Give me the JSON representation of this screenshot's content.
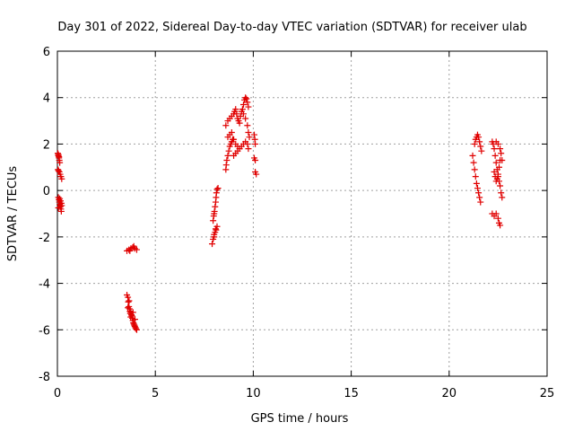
{
  "chart_data": {
    "type": "scatter",
    "title": "Day 301 of 2022, Sidereal Day-to-day VTEC variation (SDTVAR) for receiver ulab",
    "xlabel": "GPS time / hours",
    "ylabel": "SDTVAR / TECUs",
    "xlim": [
      0,
      25
    ],
    "ylim": [
      -8,
      6
    ],
    "xticks": [
      "0",
      "5",
      "10",
      "15",
      "20",
      "25"
    ],
    "yticks": [
      "-8",
      "-6",
      "-4",
      "-2",
      "0",
      "2",
      "4",
      "6"
    ],
    "grid": true,
    "marker": "+",
    "color": "#e00000",
    "series": [
      {
        "name": "SDTVAR",
        "points": [
          [
            0.02,
            1.6
          ],
          [
            0.05,
            1.5
          ],
          [
            0.08,
            1.4
          ],
          [
            0.1,
            1.3
          ],
          [
            0.12,
            1.2
          ],
          [
            0.05,
            1.55
          ],
          [
            0.08,
            1.45
          ],
          [
            0.03,
            0.9
          ],
          [
            0.06,
            0.85
          ],
          [
            0.1,
            0.8
          ],
          [
            0.14,
            0.7
          ],
          [
            0.18,
            0.6
          ],
          [
            0.22,
            0.5
          ],
          [
            0.05,
            -0.3
          ],
          [
            0.08,
            -0.4
          ],
          [
            0.1,
            -0.5
          ],
          [
            0.12,
            -0.6
          ],
          [
            0.15,
            -0.7
          ],
          [
            0.18,
            -0.8
          ],
          [
            0.2,
            -0.9
          ],
          [
            0.12,
            -0.35
          ],
          [
            0.16,
            -0.45
          ],
          [
            0.2,
            -0.55
          ],
          [
            0.22,
            -0.65
          ],
          [
            0.05,
            -0.75
          ],
          [
            3.55,
            -2.6
          ],
          [
            3.65,
            -2.55
          ],
          [
            3.75,
            -2.5
          ],
          [
            3.85,
            -2.45
          ],
          [
            3.95,
            -2.5
          ],
          [
            4.05,
            -2.55
          ],
          [
            3.7,
            -2.6
          ],
          [
            3.9,
            -2.4
          ],
          [
            3.55,
            -4.5
          ],
          [
            3.6,
            -4.6
          ],
          [
            3.62,
            -4.8
          ],
          [
            3.65,
            -5.0
          ],
          [
            3.68,
            -5.1
          ],
          [
            3.7,
            -5.2
          ],
          [
            3.72,
            -5.3
          ],
          [
            3.75,
            -5.25
          ],
          [
            3.78,
            -5.35
          ],
          [
            3.8,
            -5.4
          ],
          [
            3.82,
            -5.5
          ],
          [
            3.85,
            -5.6
          ],
          [
            3.88,
            -5.7
          ],
          [
            3.9,
            -5.75
          ],
          [
            3.93,
            -5.8
          ],
          [
            3.95,
            -5.85
          ],
          [
            3.98,
            -5.9
          ],
          [
            4.0,
            -5.95
          ],
          [
            4.05,
            -6.0
          ],
          [
            3.6,
            -5.05
          ],
          [
            3.66,
            -4.75
          ],
          [
            3.74,
            -5.45
          ],
          [
            3.86,
            -5.25
          ],
          [
            3.96,
            -5.55
          ],
          [
            7.9,
            -2.3
          ],
          [
            7.95,
            -2.1
          ],
          [
            8.0,
            -1.9
          ],
          [
            8.05,
            -1.8
          ],
          [
            8.1,
            -1.7
          ],
          [
            8.15,
            -1.55
          ],
          [
            8.0,
            -2.0
          ],
          [
            8.08,
            -1.65
          ],
          [
            7.95,
            -1.3
          ],
          [
            7.98,
            -1.1
          ],
          [
            8.0,
            -1.0
          ],
          [
            8.02,
            -0.9
          ],
          [
            8.05,
            -0.7
          ],
          [
            8.08,
            -0.5
          ],
          [
            8.1,
            -0.3
          ],
          [
            8.12,
            -0.1
          ],
          [
            8.15,
            0.05
          ],
          [
            8.2,
            0.1
          ],
          [
            8.6,
            0.9
          ],
          [
            8.62,
            1.1
          ],
          [
            8.65,
            1.3
          ],
          [
            8.7,
            1.5
          ],
          [
            8.75,
            1.7
          ],
          [
            8.8,
            1.9
          ],
          [
            8.85,
            2.0
          ],
          [
            8.9,
            2.1
          ],
          [
            8.95,
            2.2
          ],
          [
            8.6,
            2.8
          ],
          [
            8.7,
            3.0
          ],
          [
            8.8,
            3.1
          ],
          [
            8.9,
            3.2
          ],
          [
            9.0,
            3.3
          ],
          [
            9.05,
            3.4
          ],
          [
            9.1,
            3.5
          ],
          [
            9.15,
            3.3
          ],
          [
            9.2,
            3.1
          ],
          [
            9.25,
            3.0
          ],
          [
            9.3,
            2.9
          ],
          [
            9.35,
            3.2
          ],
          [
            9.4,
            3.4
          ],
          [
            8.7,
            2.3
          ],
          [
            8.8,
            2.4
          ],
          [
            8.9,
            2.5
          ],
          [
            9.0,
            2.2
          ],
          [
            9.1,
            2.0
          ],
          [
            9.2,
            1.9
          ],
          [
            9.0,
            1.5
          ],
          [
            9.1,
            1.6
          ],
          [
            9.2,
            1.7
          ],
          [
            9.3,
            1.8
          ],
          [
            9.4,
            1.9
          ],
          [
            9.5,
            2.0
          ],
          [
            9.6,
            2.1
          ],
          [
            9.7,
            2.0
          ],
          [
            9.75,
            1.8
          ],
          [
            9.45,
            3.5
          ],
          [
            9.5,
            3.7
          ],
          [
            9.55,
            3.9
          ],
          [
            9.6,
            4.0
          ],
          [
            9.65,
            3.95
          ],
          [
            9.7,
            3.8
          ],
          [
            9.75,
            3.6
          ],
          [
            9.5,
            3.3
          ],
          [
            9.6,
            3.1
          ],
          [
            9.7,
            2.8
          ],
          [
            9.75,
            2.5
          ],
          [
            9.8,
            2.3
          ],
          [
            10.05,
            2.4
          ],
          [
            10.08,
            2.2
          ],
          [
            10.1,
            2.0
          ],
          [
            10.05,
            1.4
          ],
          [
            10.1,
            1.3
          ],
          [
            10.1,
            0.8
          ],
          [
            10.15,
            0.7
          ],
          [
            21.2,
            1.5
          ],
          [
            21.25,
            1.2
          ],
          [
            21.3,
            0.9
          ],
          [
            21.35,
            0.6
          ],
          [
            21.4,
            0.3
          ],
          [
            21.45,
            0.1
          ],
          [
            21.5,
            -0.1
          ],
          [
            21.55,
            -0.3
          ],
          [
            21.6,
            -0.5
          ],
          [
            21.3,
            2.0
          ],
          [
            21.35,
            2.2
          ],
          [
            21.4,
            2.3
          ],
          [
            21.45,
            2.4
          ],
          [
            21.5,
            2.3
          ],
          [
            21.55,
            2.1
          ],
          [
            21.6,
            1.9
          ],
          [
            21.65,
            1.7
          ],
          [
            22.2,
            2.1
          ],
          [
            22.25,
            2.0
          ],
          [
            22.3,
            1.8
          ],
          [
            22.35,
            1.5
          ],
          [
            22.4,
            1.2
          ],
          [
            22.45,
            0.9
          ],
          [
            22.5,
            0.6
          ],
          [
            22.55,
            0.4
          ],
          [
            22.6,
            0.2
          ],
          [
            22.65,
            -0.1
          ],
          [
            22.7,
            -0.3
          ],
          [
            22.3,
            0.8
          ],
          [
            22.35,
            0.6
          ],
          [
            22.4,
            0.4
          ],
          [
            22.45,
            0.5
          ],
          [
            22.5,
            0.7
          ],
          [
            22.55,
            1.0
          ],
          [
            22.6,
            1.3
          ],
          [
            22.2,
            -1.0
          ],
          [
            22.3,
            -1.1
          ],
          [
            22.4,
            -1.0
          ],
          [
            22.5,
            -1.2
          ],
          [
            22.55,
            -1.4
          ],
          [
            22.6,
            -1.5
          ],
          [
            22.4,
            2.1
          ],
          [
            22.5,
            2.0
          ],
          [
            22.6,
            1.8
          ],
          [
            22.65,
            1.6
          ],
          [
            22.7,
            1.3
          ]
        ]
      }
    ]
  }
}
